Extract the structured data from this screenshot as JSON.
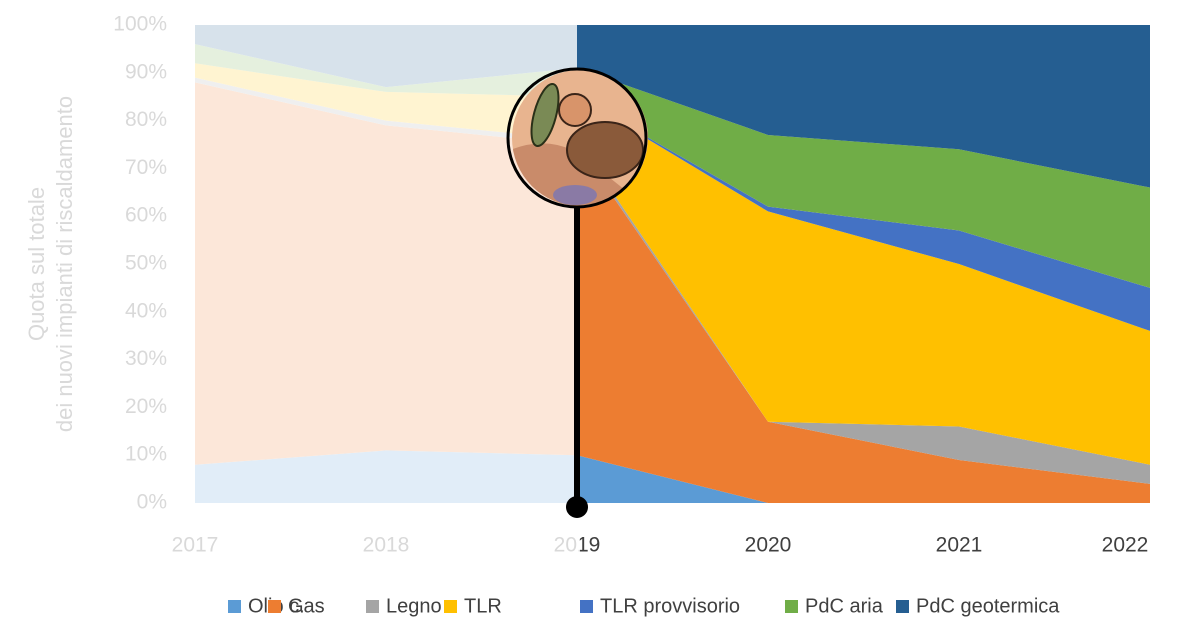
{
  "chart_data": {
    "type": "area",
    "stacked": true,
    "ylabel": [
      "Quota sul totale",
      "dei nuovi impianti di riscaldamento"
    ],
    "x": [
      2017,
      2018,
      2019,
      2020,
      2021,
      2022
    ],
    "xlim": [
      2017,
      2022
    ],
    "ylim": [
      0,
      100
    ],
    "yticks": [
      {
        "value": 0,
        "label": "0%"
      },
      {
        "value": 10,
        "label": "10%"
      },
      {
        "value": 20,
        "label": "20%"
      },
      {
        "value": 30,
        "label": "30%"
      },
      {
        "value": 40,
        "label": "40%"
      },
      {
        "value": 50,
        "label": "50%"
      },
      {
        "value": 60,
        "label": "60%"
      },
      {
        "value": 70,
        "label": "70%"
      },
      {
        "value": 80,
        "label": "80%"
      },
      {
        "value": 90,
        "label": "90%"
      },
      {
        "value": 100,
        "label": "100%"
      }
    ],
    "highlight_from": 2019,
    "series": [
      {
        "name": "Olio c.",
        "color": "#5b9bd5",
        "values": [
          8,
          11,
          10,
          0,
          0,
          0
        ]
      },
      {
        "name": "Gas",
        "color": "#ed7d31",
        "values": [
          80,
          68,
          65,
          17,
          9,
          4
        ]
      },
      {
        "name": "Legno",
        "color": "#a5a5a5",
        "values": [
          1,
          1,
          1,
          0,
          7,
          4
        ]
      },
      {
        "name": "TLR",
        "color": "#ffc000",
        "values": [
          3,
          6,
          9,
          44,
          34,
          28
        ]
      },
      {
        "name": "TLR provvisorio",
        "color": "#4472c4",
        "values": [
          0,
          0,
          0,
          1,
          7,
          9
        ]
      },
      {
        "name": "PdC aria",
        "color": "#70ad47",
        "values": [
          4,
          1,
          6,
          15,
          17,
          21
        ]
      },
      {
        "name": "PdC geotermica",
        "color": "#255e91",
        "values": [
          4,
          13,
          9,
          23,
          26,
          34
        ]
      }
    ]
  }
}
